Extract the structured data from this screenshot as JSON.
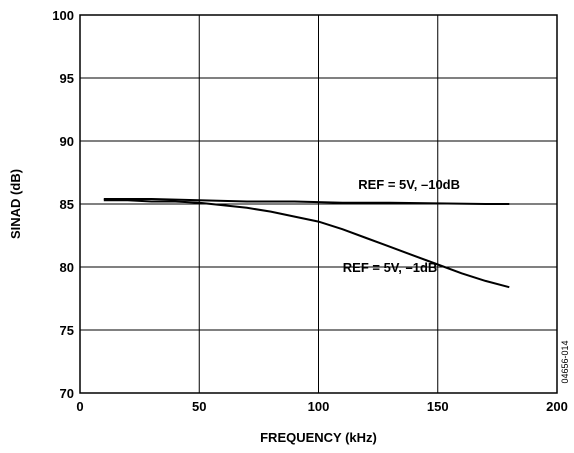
{
  "chart_data": {
    "type": "line",
    "xlabel": "FREQUENCY (kHz)",
    "ylabel": "SINAD (dB)",
    "xlim": [
      0,
      200
    ],
    "ylim": [
      70,
      100
    ],
    "xticks": [
      0,
      50,
      100,
      150,
      200
    ],
    "yticks": [
      70,
      75,
      80,
      85,
      90,
      95,
      100
    ],
    "grid": true,
    "series": [
      {
        "name": "REF = 5V, –10dB",
        "x": [
          10,
          30,
          50,
          70,
          90,
          110,
          130,
          150,
          170,
          180
        ],
        "y": [
          85.4,
          85.4,
          85.3,
          85.2,
          85.2,
          85.1,
          85.1,
          85.05,
          85.0,
          85.0
        ]
      },
      {
        "name": "REF = 5V, –1dB",
        "x": [
          10,
          20,
          30,
          40,
          50,
          60,
          70,
          80,
          90,
          100,
          110,
          120,
          130,
          140,
          150,
          160,
          170,
          180
        ],
        "y": [
          85.3,
          85.3,
          85.2,
          85.2,
          85.1,
          84.9,
          84.7,
          84.4,
          84.0,
          83.6,
          83.0,
          82.3,
          81.6,
          80.9,
          80.2,
          79.5,
          78.9,
          78.4
        ]
      }
    ],
    "annotations": [
      {
        "text": "REF = 5V, –10dB",
        "x": 138,
        "y": 86.2
      },
      {
        "text": "REF = 5V, –1dB",
        "x": 130,
        "y": 79.6
      }
    ],
    "figure_id": "04656-014"
  }
}
